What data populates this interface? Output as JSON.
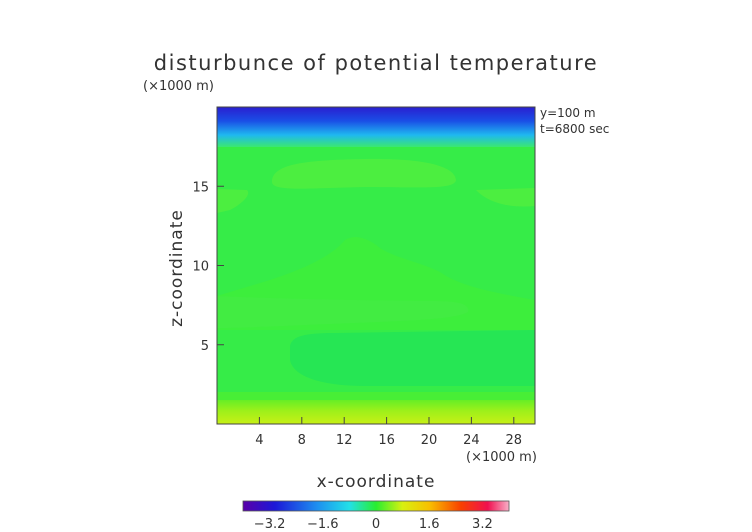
{
  "chart_data": {
    "type": "heatmap",
    "title": "disturbunce of potential temperature",
    "xlabel": "x-coordinate",
    "ylabel": "z-coordinate",
    "x_unit": "(×1000 m)",
    "y_unit": "(×1000 m)",
    "annotations": [
      "y=100 m",
      "t=6800 sec"
    ],
    "xlim": [
      0,
      30
    ],
    "ylim": [
      0,
      20
    ],
    "xticks": [
      4,
      8,
      12,
      16,
      20,
      24,
      28
    ],
    "yticks": [
      5,
      10,
      15
    ],
    "grid": false,
    "colorbar": {
      "ticks": [
        "−3.2",
        "−1.6",
        "0",
        "1.6",
        "3.2"
      ],
      "tick_values": [
        -3.2,
        -1.6,
        0,
        1.6,
        3.2
      ],
      "range": [
        -4,
        4
      ]
    },
    "regions": [
      {
        "name": "top-blue-layer",
        "value": -3.0
      },
      {
        "name": "cyan-transition",
        "value": -1.0
      },
      {
        "name": "background",
        "value": -0.1
      },
      {
        "name": "upper-lobe",
        "value": 0.1
      },
      {
        "name": "side-lobes",
        "value": 0.1
      },
      {
        "name": "central-dome",
        "value": 0.05
      },
      {
        "name": "mid-band",
        "value": 0.12
      },
      {
        "name": "lower-pool",
        "value": -0.25
      },
      {
        "name": "bottom-yellow-layer",
        "value": 0.5
      }
    ]
  }
}
